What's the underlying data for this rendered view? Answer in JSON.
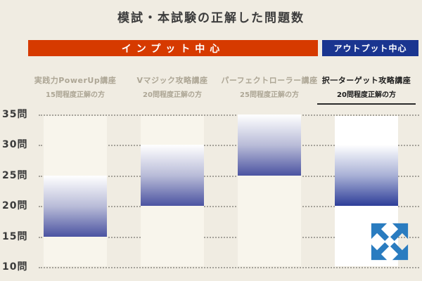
{
  "title": "模試・本試験の正解した問題数",
  "banners": [
    {
      "id": "input",
      "label": "インプット中心",
      "color": "#d63a00"
    },
    {
      "id": "output",
      "label": "アウトプット中心",
      "color": "#1a3590"
    }
  ],
  "icons": {
    "expand": {
      "name": "expand-arrows-icon",
      "color": "#2a7cc0"
    }
  },
  "chart_data": {
    "type": "bar",
    "title": "模試・本試験の正解した問題数",
    "orientation": "vertical-range-bars",
    "unit": "問",
    "ylim": [
      10,
      35
    ],
    "y_ticks": [
      35,
      30,
      25,
      20,
      15,
      10
    ],
    "y_tick_labels": [
      "35問",
      "30問",
      "25問",
      "20問",
      "15問",
      "10問"
    ],
    "grid": "dotted-horizontal",
    "columns": [
      {
        "course": "実践力PowerUp講座",
        "note": "15問程度正解の方",
        "range_min": 15,
        "range_max": 25,
        "group": "インプット中心",
        "highlight": false,
        "gradient": [
          "#ffffff",
          "#b9bcd8",
          "#4b53a1"
        ]
      },
      {
        "course": "Vマジック攻略講座",
        "note": "20問程度正解の方",
        "range_min": 20,
        "range_max": 30,
        "group": "インプット中心",
        "highlight": false,
        "gradient": [
          "#ffffff",
          "#b9bcd8",
          "#4b53a1"
        ]
      },
      {
        "course": "パーフェクトローラー講座",
        "note": "25問程度正解の方",
        "range_min": 25,
        "range_max": 35,
        "group": "インプット中心",
        "highlight": false,
        "gradient": [
          "#ffffff",
          "#b9bcd8",
          "#4b53a1"
        ]
      },
      {
        "course": "択一ターゲット攻略講座",
        "note": "20問程度正解の方",
        "range_min": 20,
        "range_max": 30,
        "group": "アウトプット中心",
        "highlight": true,
        "gradient": [
          "#ffffff",
          "#a9b1d6",
          "#2e3e99"
        ]
      }
    ]
  }
}
